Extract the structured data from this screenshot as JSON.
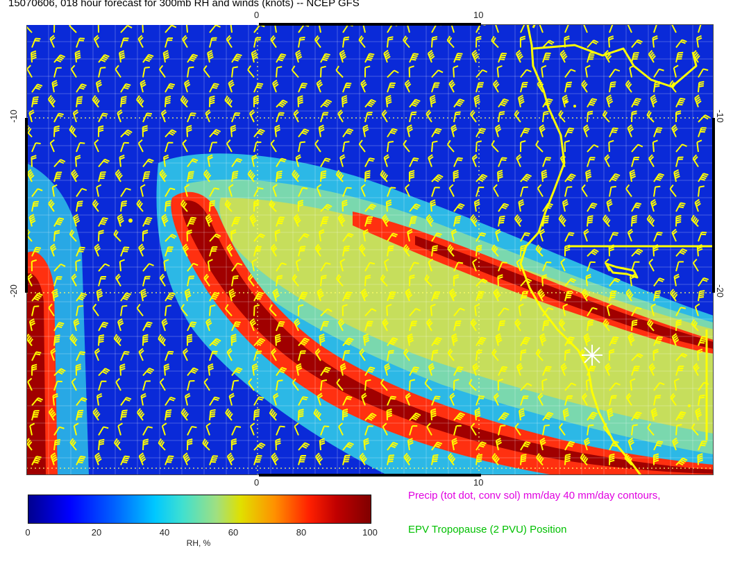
{
  "title": "15070606, 018 hour forecast for 300mb RH and winds (knots) -- NCEP GFS",
  "axes": {
    "lon_ticks_top": [
      "0",
      "10"
    ],
    "lon_ticks_bottom": [
      "0",
      "10"
    ],
    "lat_ticks_left": [
      "-10",
      "-20"
    ],
    "lat_ticks_right": [
      "-10",
      "-20"
    ]
  },
  "colorbar": {
    "ticks": [
      "0",
      "20",
      "40",
      "60",
      "80",
      "100"
    ],
    "label": "RH, %",
    "colors": [
      "#00008f",
      "#0000ff",
      "#00c8ff",
      "#e0e000",
      "#ff2000",
      "#800000"
    ]
  },
  "legend_notes": {
    "precip": "Precip (tot dot, conv sol) mm/day 40 mm/day contours,",
    "epv": "EPV Tropopause (2 PVU) Position"
  },
  "overlay_colors": {
    "coast": "#ffff00",
    "barbs": "#ffff00",
    "grid": "#ffff66"
  }
}
